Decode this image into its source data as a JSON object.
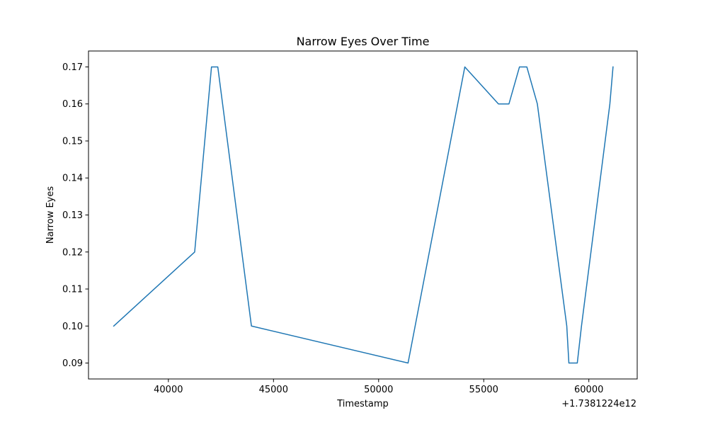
{
  "chart_data": {
    "type": "line",
    "title": "Narrow Eyes Over Time",
    "xlabel": "Timestamp",
    "ylabel": "Narrow Eyes",
    "x_offset_label": "+1.7381224e12",
    "xlim": [
      36200,
      62300
    ],
    "ylim": [
      0.0857,
      0.1743
    ],
    "x_ticks": [
      40000,
      45000,
      50000,
      55000,
      60000
    ],
    "x_tick_labels": [
      "40000",
      "45000",
      "50000",
      "55000",
      "60000"
    ],
    "y_ticks": [
      0.09,
      0.1,
      0.11,
      0.12,
      0.13,
      0.14,
      0.15,
      0.16,
      0.17
    ],
    "y_tick_labels": [
      "0.09",
      "0.10",
      "0.11",
      "0.12",
      "0.13",
      "0.14",
      "0.15",
      "0.16",
      "0.17"
    ],
    "grid": false,
    "line_color": "#1f77b4",
    "series": [
      {
        "x": [
          37400,
          41250,
          42050,
          42350,
          43950,
          51400,
          54100,
          55700,
          56200,
          56700,
          57050,
          57550,
          58950,
          59050,
          59450,
          59650,
          61000,
          61150
        ],
        "values": [
          0.1,
          0.12,
          0.17,
          0.17,
          0.1,
          0.09,
          0.17,
          0.16,
          0.16,
          0.17,
          0.17,
          0.16,
          0.1,
          0.09,
          0.09,
          0.1,
          0.16,
          0.17
        ]
      }
    ]
  }
}
